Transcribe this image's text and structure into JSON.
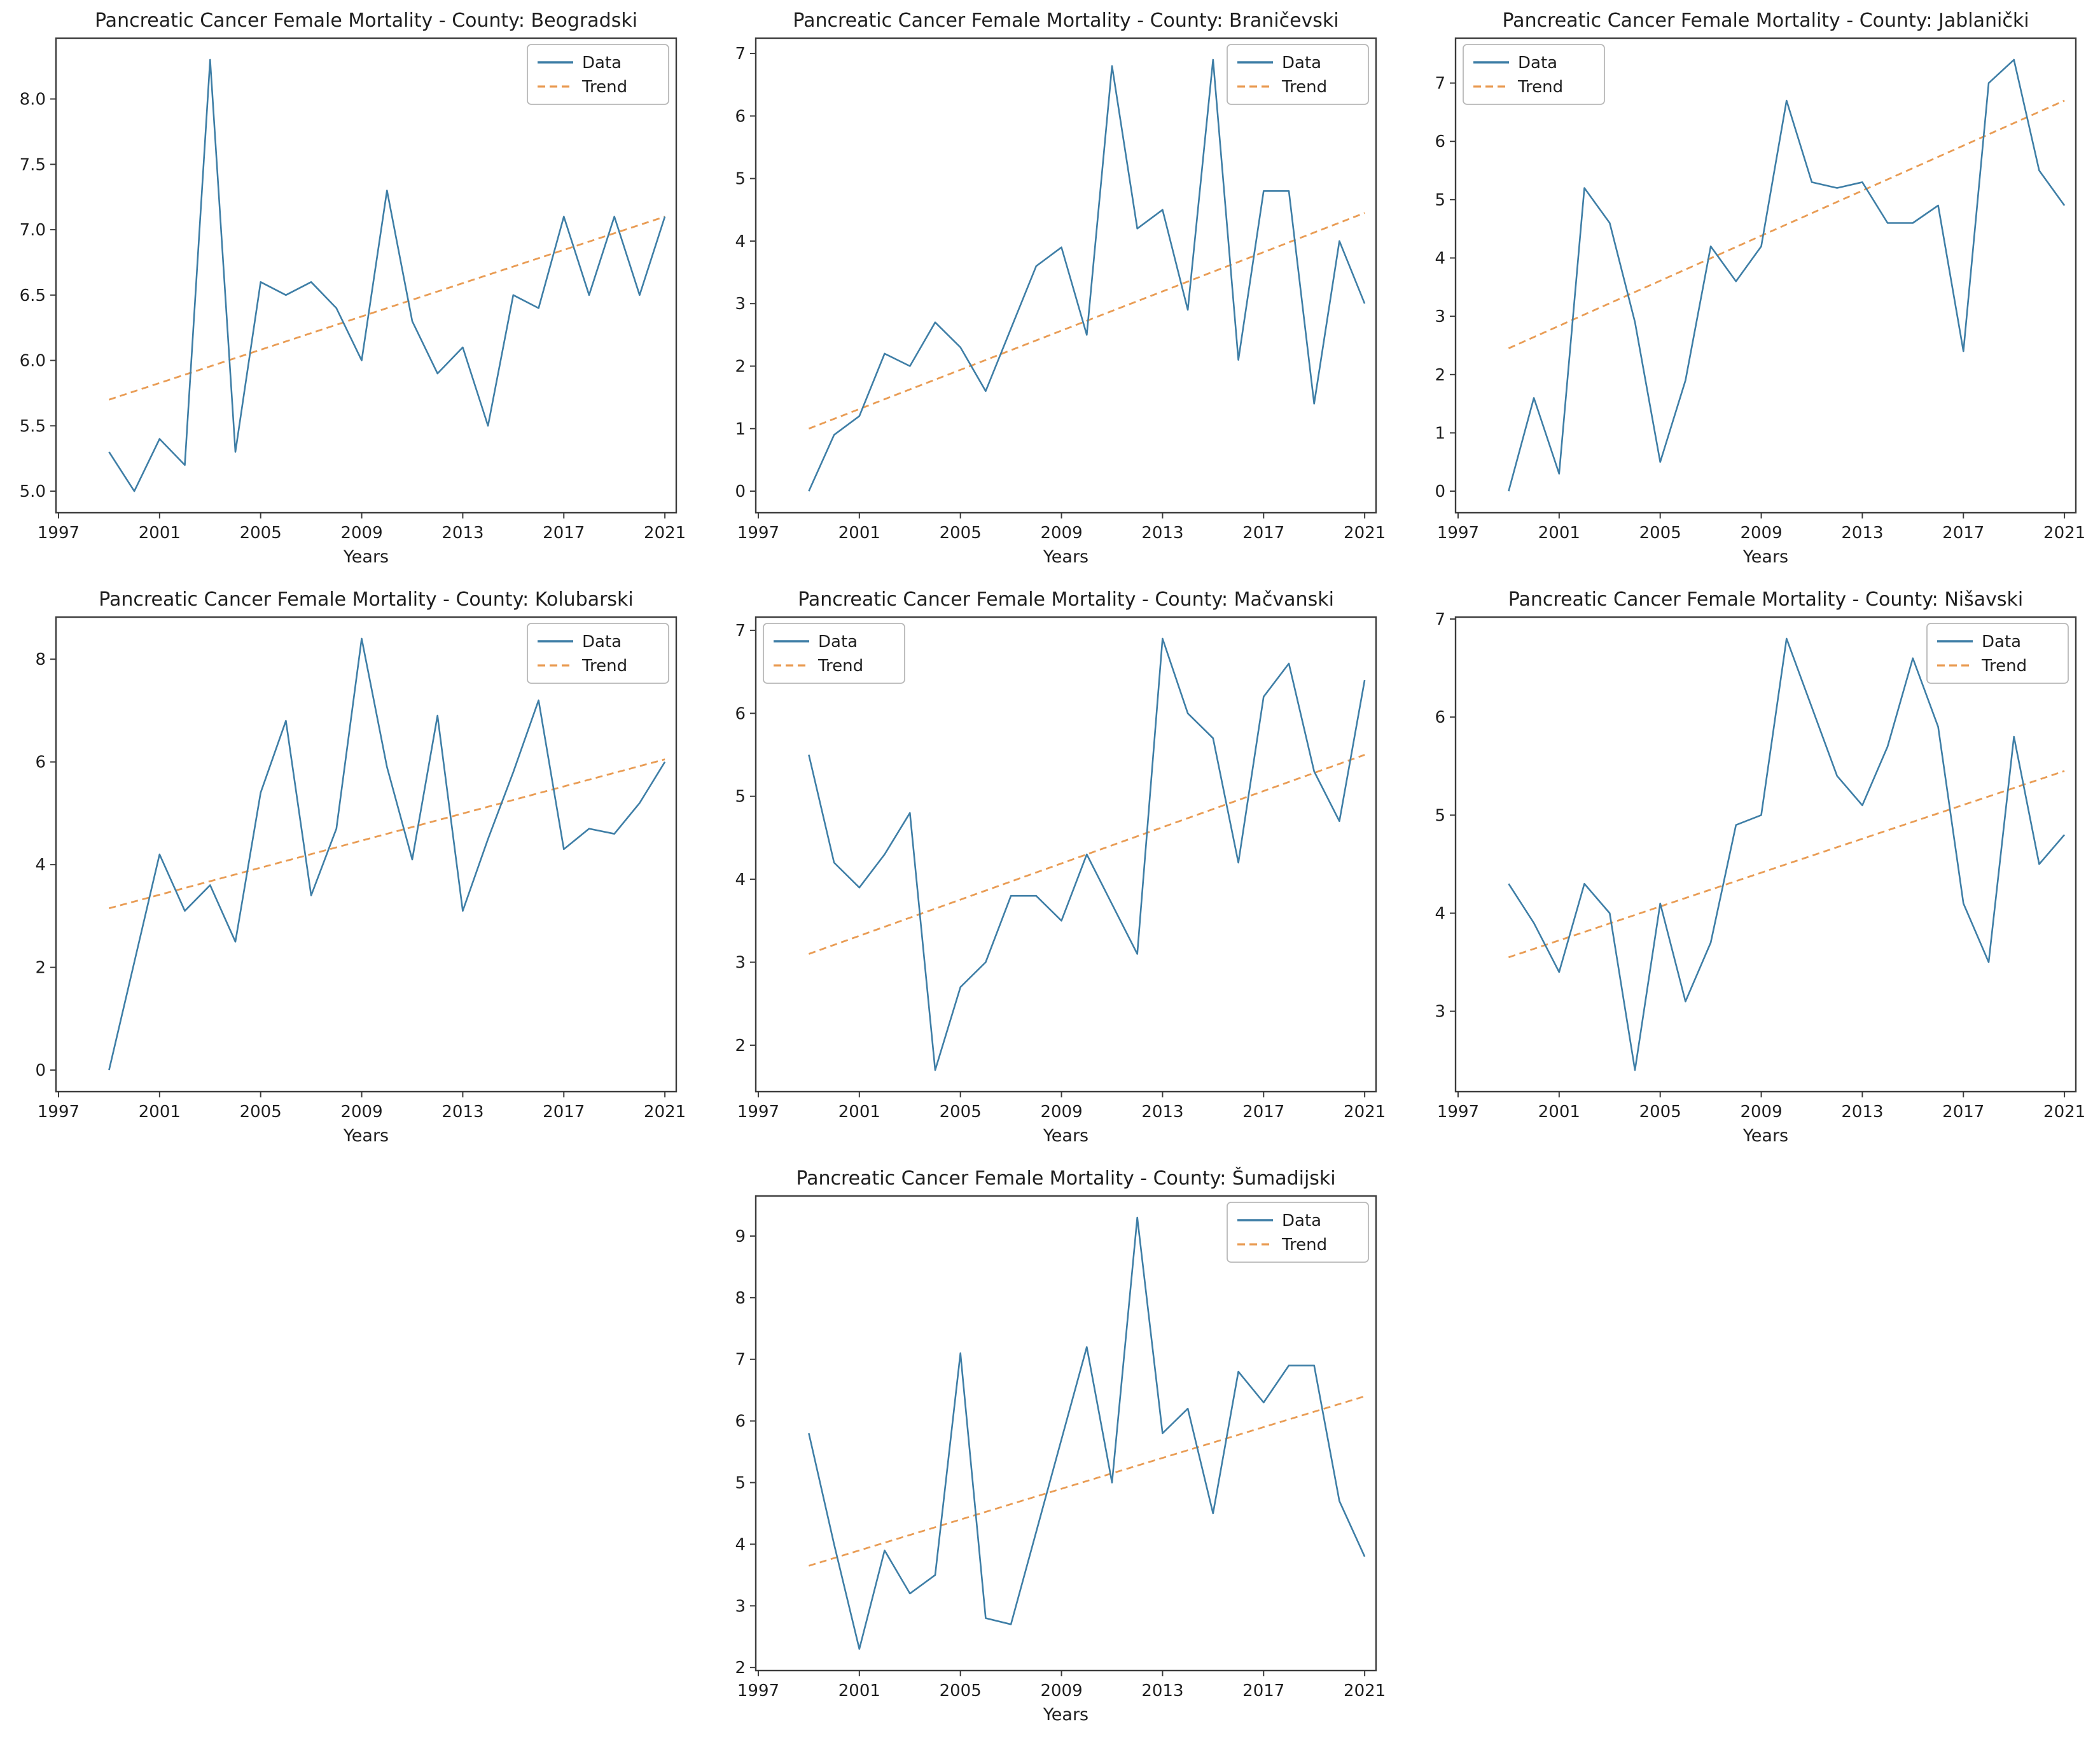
{
  "figure": {
    "background": "#ffffff",
    "xlabel": "Years",
    "data_color": "#3e7ea6",
    "trend_color": "#e99c54",
    "spine_color": "#3c3c3c",
    "legend_border_color": "#b8b8b8"
  },
  "chart_data": [
    {
      "type": "line",
      "title": "Pancreatic Cancer Female Mortality - County: Beogradski",
      "county": "Beogradski",
      "xlabel": "Years",
      "legend_position": "top-right",
      "legend_entries": [
        "Data",
        "Trend"
      ],
      "x": [
        1999,
        2000,
        2001,
        2002,
        2003,
        2004,
        2005,
        2006,
        2007,
        2008,
        2009,
        2010,
        2011,
        2012,
        2013,
        2014,
        2015,
        2016,
        2017,
        2018,
        2019,
        2020,
        2021
      ],
      "series": [
        {
          "name": "Data",
          "style": "solid",
          "values": [
            5.3,
            5.0,
            5.4,
            5.2,
            8.3,
            5.3,
            6.6,
            6.5,
            6.6,
            6.4,
            6.0,
            7.3,
            6.3,
            5.9,
            6.1,
            5.5,
            6.5,
            6.4,
            7.1,
            6.5,
            7.1,
            6.5,
            7.1
          ]
        },
        {
          "name": "Trend",
          "style": "dashed",
          "trend_start": 5.7,
          "trend_end": 7.1
        }
      ],
      "ylim": [
        4.835,
        8.465
      ],
      "yticks": [
        5.0,
        5.5,
        6.0,
        6.5,
        7.0,
        7.5,
        8.0
      ],
      "yticklabels": [
        "5.0",
        "5.5",
        "6.0",
        "6.5",
        "7.0",
        "7.5",
        "8.0"
      ],
      "xticks": [
        1997,
        2001,
        2005,
        2009,
        2013,
        2017,
        2021
      ],
      "xticklabels": [
        "1997",
        "2001",
        "2005",
        "2009",
        "2013",
        "2017",
        "2021"
      ],
      "grid": false
    },
    {
      "type": "line",
      "title": "Pancreatic Cancer Female Mortality - County: Braničevski",
      "county": "Braničevski",
      "xlabel": "Years",
      "legend_position": "top-right",
      "legend_entries": [
        "Data",
        "Trend"
      ],
      "x": [
        1999,
        2000,
        2001,
        2002,
        2003,
        2004,
        2005,
        2006,
        2007,
        2008,
        2009,
        2010,
        2011,
        2012,
        2013,
        2014,
        2015,
        2016,
        2017,
        2018,
        2019,
        2020,
        2021
      ],
      "series": [
        {
          "name": "Data",
          "style": "solid",
          "values": [
            0.0,
            0.9,
            1.2,
            2.2,
            2.0,
            2.7,
            2.3,
            1.6,
            2.6,
            3.6,
            3.9,
            2.5,
            6.8,
            4.2,
            4.5,
            2.9,
            6.9,
            2.1,
            4.8,
            4.8,
            1.4,
            4.0,
            3.0
          ]
        },
        {
          "name": "Trend",
          "style": "dashed",
          "trend_start": 1.0,
          "trend_end": 4.45
        }
      ],
      "ylim": [
        -0.345,
        7.245
      ],
      "yticks": [
        0,
        1,
        2,
        3,
        4,
        5,
        6,
        7
      ],
      "yticklabels": [
        "0",
        "1",
        "2",
        "3",
        "4",
        "5",
        "6",
        "7"
      ],
      "xticks": [
        1997,
        2001,
        2005,
        2009,
        2013,
        2017,
        2021
      ],
      "xticklabels": [
        "1997",
        "2001",
        "2005",
        "2009",
        "2013",
        "2017",
        "2021"
      ],
      "grid": false
    },
    {
      "type": "line",
      "title": "Pancreatic Cancer Female Mortality - County: Jablanički",
      "county": "Jablanički",
      "xlabel": "Years",
      "legend_position": "top-left",
      "legend_entries": [
        "Data",
        "Trend"
      ],
      "x": [
        1999,
        2000,
        2001,
        2002,
        2003,
        2004,
        2005,
        2006,
        2007,
        2008,
        2009,
        2010,
        2011,
        2012,
        2013,
        2014,
        2015,
        2016,
        2017,
        2018,
        2019,
        2020,
        2021
      ],
      "series": [
        {
          "name": "Data",
          "style": "solid",
          "values": [
            0.0,
            1.6,
            0.3,
            5.2,
            4.6,
            2.9,
            0.5,
            1.9,
            4.2,
            3.6,
            4.2,
            6.7,
            5.3,
            5.2,
            5.3,
            4.6,
            4.6,
            4.9,
            2.4,
            7.0,
            7.4,
            5.5,
            4.9
          ]
        },
        {
          "name": "Trend",
          "style": "dashed",
          "trend_start": 2.45,
          "trend_end": 6.7
        }
      ],
      "ylim": [
        -0.37,
        7.77
      ],
      "yticks": [
        0,
        1,
        2,
        3,
        4,
        5,
        6,
        7
      ],
      "yticklabels": [
        "0",
        "1",
        "2",
        "3",
        "4",
        "5",
        "6",
        "7"
      ],
      "xticks": [
        1997,
        2001,
        2005,
        2009,
        2013,
        2017,
        2021
      ],
      "xticklabels": [
        "1997",
        "2001",
        "2005",
        "2009",
        "2013",
        "2017",
        "2021"
      ],
      "grid": false
    },
    {
      "type": "line",
      "title": "Pancreatic Cancer Female Mortality - County: Kolubarski",
      "county": "Kolubarski",
      "xlabel": "Years",
      "legend_position": "top-right",
      "legend_entries": [
        "Data",
        "Trend"
      ],
      "x": [
        1999,
        2000,
        2001,
        2002,
        2003,
        2004,
        2005,
        2006,
        2007,
        2008,
        2009,
        2010,
        2011,
        2012,
        2013,
        2014,
        2015,
        2016,
        2017,
        2018,
        2019,
        2020,
        2021
      ],
      "series": [
        {
          "name": "Data",
          "style": "solid",
          "values": [
            0.0,
            2.1,
            4.2,
            3.1,
            3.6,
            2.5,
            5.4,
            6.8,
            3.4,
            4.7,
            8.4,
            5.9,
            4.1,
            6.9,
            3.1,
            4.5,
            5.8,
            7.2,
            4.3,
            4.7,
            4.6,
            5.2,
            6.0
          ]
        },
        {
          "name": "Trend",
          "style": "dashed",
          "trend_start": 3.15,
          "trend_end": 6.05
        }
      ],
      "ylim": [
        -0.42,
        8.82
      ],
      "yticks": [
        0,
        2,
        4,
        6,
        8
      ],
      "yticklabels": [
        "0",
        "2",
        "4",
        "6",
        "8"
      ],
      "xticks": [
        1997,
        2001,
        2005,
        2009,
        2013,
        2017,
        2021
      ],
      "xticklabels": [
        "1997",
        "2001",
        "2005",
        "2009",
        "2013",
        "2017",
        "2021"
      ],
      "grid": false
    },
    {
      "type": "line",
      "title": "Pancreatic Cancer Female Mortality - County: Mačvanski",
      "county": "Mačvanski",
      "xlabel": "Years",
      "legend_position": "top-left",
      "legend_entries": [
        "Data",
        "Trend"
      ],
      "x": [
        1999,
        2000,
        2001,
        2002,
        2003,
        2004,
        2005,
        2006,
        2007,
        2008,
        2009,
        2010,
        2011,
        2012,
        2013,
        2014,
        2015,
        2016,
        2017,
        2018,
        2019,
        2020,
        2021
      ],
      "series": [
        {
          "name": "Data",
          "style": "solid",
          "values": [
            5.5,
            4.2,
            3.9,
            4.3,
            4.8,
            1.7,
            2.7,
            3.0,
            3.8,
            3.8,
            3.5,
            4.3,
            3.7,
            3.1,
            6.9,
            6.0,
            5.7,
            4.2,
            6.2,
            6.6,
            5.3,
            4.7,
            6.4
          ]
        },
        {
          "name": "Trend",
          "style": "dashed",
          "trend_start": 3.1,
          "trend_end": 5.5
        }
      ],
      "ylim": [
        1.44,
        7.16
      ],
      "yticks": [
        2,
        3,
        4,
        5,
        6,
        7
      ],
      "yticklabels": [
        "2",
        "3",
        "4",
        "5",
        "6",
        "7"
      ],
      "xticks": [
        1997,
        2001,
        2005,
        2009,
        2013,
        2017,
        2021
      ],
      "xticklabels": [
        "1997",
        "2001",
        "2005",
        "2009",
        "2013",
        "2017",
        "2021"
      ],
      "grid": false
    },
    {
      "type": "line",
      "title": "Pancreatic Cancer Female Mortality - County: Nišavski",
      "county": "Nišavski",
      "xlabel": "Years",
      "legend_position": "top-right",
      "legend_entries": [
        "Data",
        "Trend"
      ],
      "x": [
        1999,
        2000,
        2001,
        2002,
        2003,
        2004,
        2005,
        2006,
        2007,
        2008,
        2009,
        2010,
        2011,
        2012,
        2013,
        2014,
        2015,
        2016,
        2017,
        2018,
        2019,
        2020,
        2021
      ],
      "series": [
        {
          "name": "Data",
          "style": "solid",
          "values": [
            4.3,
            3.9,
            3.4,
            4.3,
            4.0,
            2.4,
            4.1,
            3.1,
            3.7,
            4.9,
            5.0,
            6.8,
            6.1,
            5.4,
            5.1,
            5.7,
            6.6,
            5.9,
            4.1,
            3.5,
            5.8,
            4.5,
            4.8
          ]
        },
        {
          "name": "Trend",
          "style": "dashed",
          "trend_start": 3.55,
          "trend_end": 5.45
        }
      ],
      "ylim": [
        2.18,
        7.02
      ],
      "yticks": [
        3,
        4,
        5,
        6,
        7
      ],
      "yticklabels": [
        "3",
        "4",
        "5",
        "6",
        "7"
      ],
      "xticks": [
        1997,
        2001,
        2005,
        2009,
        2013,
        2017,
        2021
      ],
      "xticklabels": [
        "1997",
        "2001",
        "2005",
        "2009",
        "2013",
        "2017",
        "2021"
      ],
      "grid": false
    },
    {
      "type": "line",
      "title": "Pancreatic Cancer Female Mortality - County: Šumadijski",
      "county": "Šumadijski",
      "xlabel": "Years",
      "legend_position": "top-right",
      "legend_entries": [
        "Data",
        "Trend"
      ],
      "x": [
        1999,
        2000,
        2001,
        2002,
        2003,
        2004,
        2005,
        2006,
        2007,
        2008,
        2009,
        2010,
        2011,
        2012,
        2013,
        2014,
        2015,
        2016,
        2017,
        2018,
        2019,
        2020,
        2021
      ],
      "series": [
        {
          "name": "Data",
          "style": "solid",
          "values": [
            5.8,
            4.0,
            2.3,
            3.9,
            3.2,
            3.5,
            7.1,
            2.8,
            2.7,
            4.2,
            5.7,
            7.2,
            5.0,
            9.3,
            5.8,
            6.2,
            4.5,
            6.8,
            6.3,
            6.9,
            6.9,
            4.7,
            3.8
          ]
        },
        {
          "name": "Trend",
          "style": "dashed",
          "trend_start": 3.65,
          "trend_end": 6.4
        }
      ],
      "ylim": [
        1.95,
        9.65
      ],
      "yticks": [
        2,
        3,
        4,
        5,
        6,
        7,
        8,
        9
      ],
      "yticklabels": [
        "2",
        "3",
        "4",
        "5",
        "6",
        "7",
        "8",
        "9"
      ],
      "xticks": [
        1997,
        2001,
        2005,
        2009,
        2013,
        2017,
        2021
      ],
      "xticklabels": [
        "1997",
        "2001",
        "2005",
        "2009",
        "2013",
        "2017",
        "2021"
      ],
      "grid": false
    }
  ]
}
